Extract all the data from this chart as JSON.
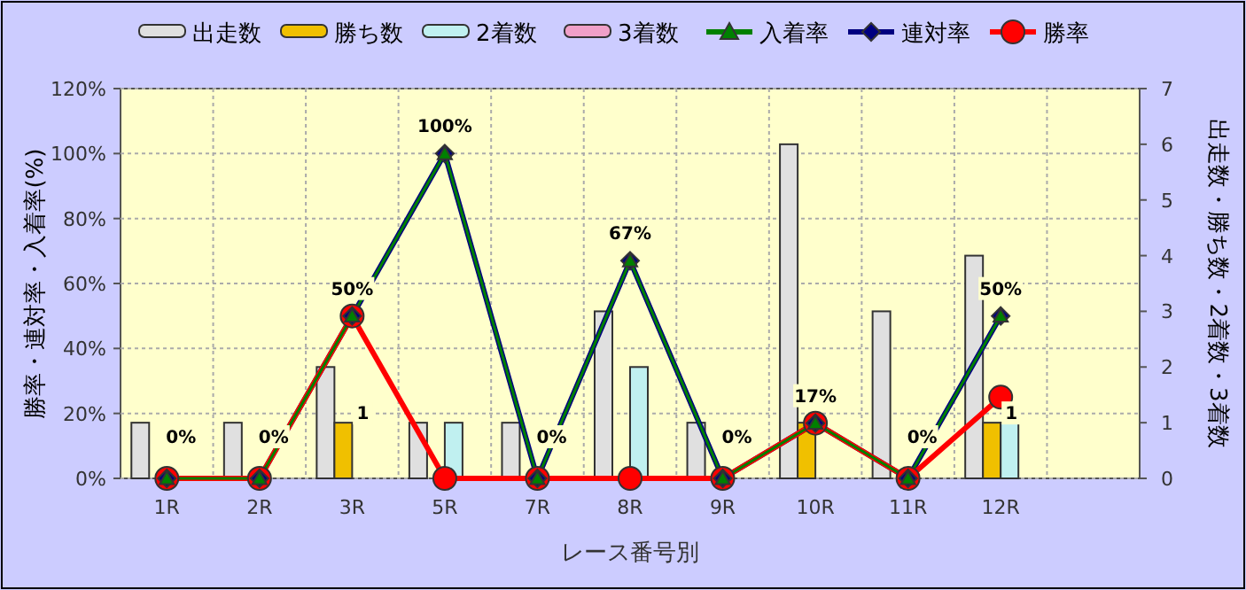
{
  "chart_data": {
    "type": "bar",
    "xlabel": "レース番号別",
    "ylabel": "勝率・連対率・入着率(%)",
    "y2label": "出走数・勝ち数・2着数・3着数",
    "categories": [
      "1R",
      "2R",
      "3R",
      "5R",
      "7R",
      "8R",
      "9R",
      "10R",
      "11R",
      "12R",
      null
    ],
    "series": [
      {
        "name": "出走数",
        "type": "bar",
        "axis": "y2",
        "color": "#e0e0e0",
        "values": [
          1,
          1,
          2,
          1,
          1,
          3,
          1,
          6,
          3,
          4,
          null
        ]
      },
      {
        "name": "勝ち数",
        "type": "bar",
        "axis": "y2",
        "color": "#f0c000",
        "values": [
          0,
          0,
          1,
          0,
          0,
          0,
          0,
          1,
          0,
          1,
          null
        ],
        "value_labels": [
          null,
          null,
          "1",
          null,
          null,
          null,
          null,
          null,
          null,
          "1",
          null
        ]
      },
      {
        "name": "2着数",
        "type": "bar",
        "axis": "y2",
        "color": "#c0f0f0",
        "values": [
          0,
          0,
          0,
          1,
          0,
          2,
          0,
          0,
          0,
          1,
          null
        ]
      },
      {
        "name": "3着数",
        "type": "bar",
        "axis": "y2",
        "color": "#f0a0c8",
        "values": [
          0,
          0,
          0,
          0,
          0,
          0,
          0,
          0,
          0,
          0,
          null
        ]
      },
      {
        "name": "入着率",
        "type": "line",
        "color": "#008000",
        "marker": "triangle",
        "values": [
          0,
          0,
          50,
          100,
          0,
          67,
          0,
          17,
          0,
          50,
          null
        ]
      },
      {
        "name": "連対率",
        "type": "line",
        "color": "#000080",
        "marker": "diamond",
        "values": [
          0,
          0,
          50,
          100,
          0,
          67,
          0,
          17,
          0,
          50,
          null
        ],
        "value_labels": [
          "0%",
          "0%",
          "50%",
          "100%",
          "0%",
          "67%",
          "0%",
          "17%",
          "0%",
          "50%",
          null
        ]
      },
      {
        "name": "勝率",
        "type": "line",
        "color": "#ff0000",
        "marker": "circle",
        "values": [
          0,
          0,
          50,
          0,
          0,
          0,
          0,
          17,
          0,
          25,
          null
        ]
      }
    ],
    "ylim": [
      0,
      120
    ],
    "yticks": [
      {
        "value": 0,
        "label": "0%"
      },
      {
        "value": 20,
        "label": "20%"
      },
      {
        "value": 40,
        "label": "40%"
      },
      {
        "value": 60,
        "label": "60%"
      },
      {
        "value": 80,
        "label": "80%"
      },
      {
        "value": 100,
        "label": "100%"
      },
      {
        "value": 120,
        "label": "120%"
      }
    ],
    "y2lim": [
      0,
      7
    ],
    "y2ticks": [
      0,
      1,
      2,
      3,
      4,
      5,
      6,
      7
    ],
    "grid": true,
    "legend": "top"
  }
}
